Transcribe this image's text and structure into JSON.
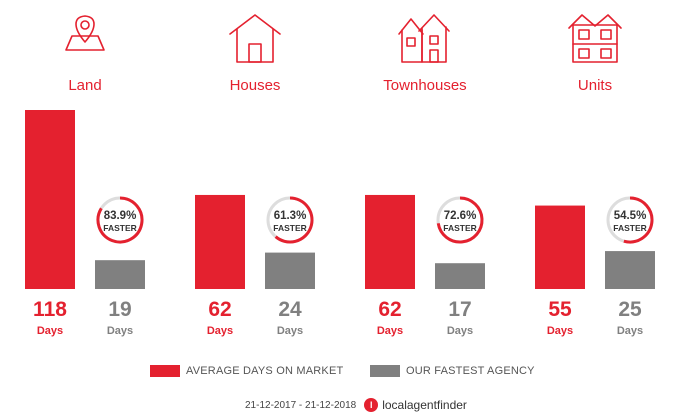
{
  "chart_data": {
    "type": "bar",
    "categories": [
      "Land",
      "Houses",
      "Townhouses",
      "Units"
    ],
    "icons": [
      "location-pin-icon",
      "house-icon",
      "townhouse-icon",
      "units-building-icon"
    ],
    "unit_label": "Days",
    "series": [
      {
        "name": "AVERAGE DAYS ON MARKET",
        "color": "#e4212f",
        "values": [
          118,
          62,
          62,
          55
        ]
      },
      {
        "name": "OUR FASTEST AGENCY",
        "color": "#808080",
        "values": [
          19,
          24,
          17,
          25
        ]
      }
    ],
    "faster": [
      {
        "percent": "83.9%",
        "fraction": 0.839,
        "label": "FASTER"
      },
      {
        "percent": "61.3%",
        "fraction": 0.613,
        "label": "FASTER"
      },
      {
        "percent": "72.6%",
        "fraction": 0.726,
        "label": "FASTER"
      },
      {
        "percent": "54.5%",
        "fraction": 0.545,
        "label": "FASTER"
      }
    ],
    "ylim": [
      0,
      118
    ]
  },
  "footer": {
    "date_range": "21-12-2017 - 21-12-2018",
    "brand": "localagentfinder"
  },
  "colors": {
    "accent": "#e4212f",
    "agency": "#808080",
    "ring_track": "#dddddd"
  }
}
